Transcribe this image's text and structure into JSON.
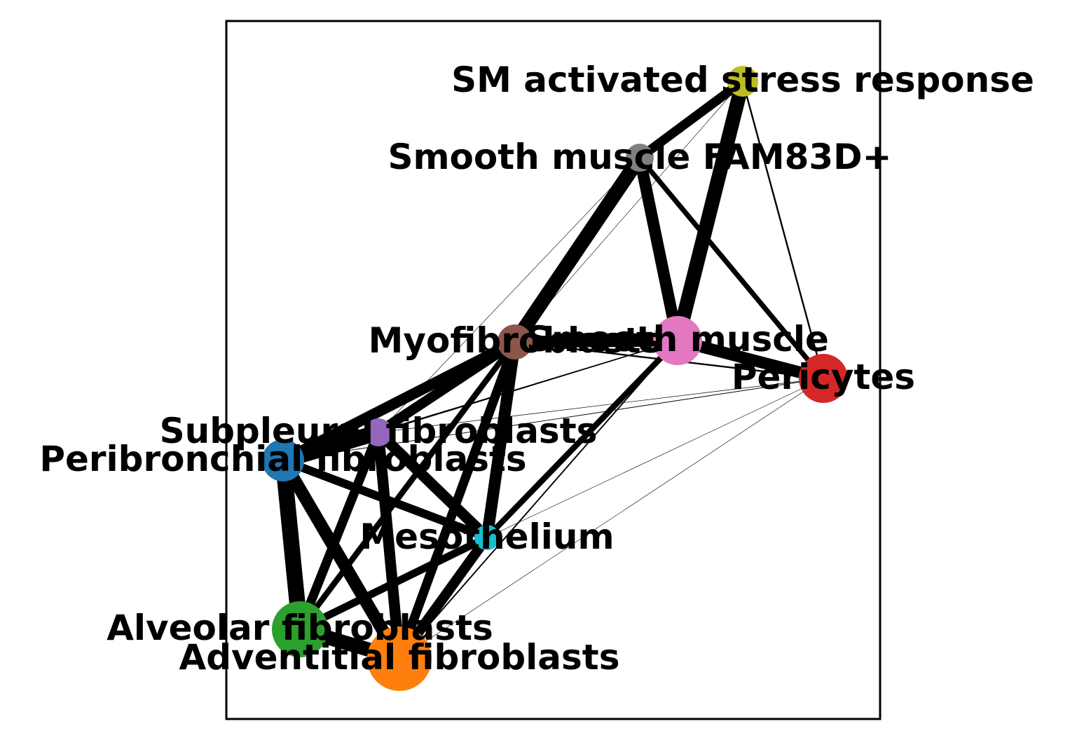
{
  "nodes": [
    {
      "id": "sm_stress",
      "label": "SM activated stress response",
      "color": "#bcbd22"
    },
    {
      "id": "sm_fam83d",
      "label": "Smooth muscle FAM83D+",
      "color": "#7f7f7f"
    },
    {
      "id": "myofib",
      "label": "Myofibroblasts",
      "color": "#8c564b"
    },
    {
      "id": "smooth",
      "label": "Smooth muscle",
      "color": "#e377c2"
    },
    {
      "id": "pericytes",
      "label": "Pericytes",
      "color": "#d62728"
    },
    {
      "id": "subpleural",
      "label": "Subpleural fibroblasts",
      "color": "#9467bd"
    },
    {
      "id": "peribronchial",
      "label": "Peribronchial fibroblasts",
      "color": "#1f77b4"
    },
    {
      "id": "mesothelium",
      "label": "Mesothelium",
      "color": "#17becf"
    },
    {
      "id": "alveolar",
      "label": "Alveolar fibroblasts",
      "color": "#2ca02c"
    },
    {
      "id": "adventitial",
      "label": "Adventitial fibroblasts",
      "color": "#ff7f0e"
    }
  ],
  "edges": [
    {
      "source": "sm_stress",
      "target": "sm_fam83d",
      "weight": 0.55
    },
    {
      "source": "sm_stress",
      "target": "smooth",
      "weight": 0.85
    },
    {
      "source": "sm_stress",
      "target": "pericytes",
      "weight": 0.1
    },
    {
      "source": "sm_stress",
      "target": "myofib",
      "weight": 0.02
    },
    {
      "source": "sm_fam83d",
      "target": "myofib",
      "weight": 0.85
    },
    {
      "source": "sm_fam83d",
      "target": "smooth",
      "weight": 0.7
    },
    {
      "source": "sm_fam83d",
      "target": "pericytes",
      "weight": 0.3
    },
    {
      "source": "sm_fam83d",
      "target": "subpleural",
      "weight": 0.02
    },
    {
      "source": "myofib",
      "target": "smooth",
      "weight": 0.7
    },
    {
      "source": "myofib",
      "target": "pericytes",
      "weight": 0.1
    },
    {
      "source": "myofib",
      "target": "subpleural",
      "weight": 0.6
    },
    {
      "source": "myofib",
      "target": "peribronchial",
      "weight": 0.65
    },
    {
      "source": "myofib",
      "target": "mesothelium",
      "weight": 0.7
    },
    {
      "source": "myofib",
      "target": "alveolar",
      "weight": 0.35
    },
    {
      "source": "myofib",
      "target": "adventitial",
      "weight": 0.55
    },
    {
      "source": "smooth",
      "target": "pericytes",
      "weight": 0.7
    },
    {
      "source": "smooth",
      "target": "mesothelium",
      "weight": 0.35
    },
    {
      "source": "smooth",
      "target": "subpleural",
      "weight": 0.06
    },
    {
      "source": "smooth",
      "target": "peribronchial",
      "weight": 0.06
    },
    {
      "source": "smooth",
      "target": "adventitial",
      "weight": 0.08
    },
    {
      "source": "pericytes",
      "target": "peribronchial",
      "weight": 0.04
    },
    {
      "source": "pericytes",
      "target": "subpleural",
      "weight": 0.03
    },
    {
      "source": "pericytes",
      "target": "adventitial",
      "weight": 0.02
    },
    {
      "source": "pericytes",
      "target": "mesothelium",
      "weight": 0.02
    },
    {
      "source": "subpleural",
      "target": "peribronchial",
      "weight": 0.95
    },
    {
      "source": "subpleural",
      "target": "mesothelium",
      "weight": 0.65
    },
    {
      "source": "subpleural",
      "target": "alveolar",
      "weight": 0.55
    },
    {
      "source": "subpleural",
      "target": "adventitial",
      "weight": 0.65
    },
    {
      "source": "peribronchial",
      "target": "mesothelium",
      "weight": 0.5
    },
    {
      "source": "peribronchial",
      "target": "alveolar",
      "weight": 0.95
    },
    {
      "source": "peribronchial",
      "target": "adventitial",
      "weight": 0.75
    },
    {
      "source": "mesothelium",
      "target": "alveolar",
      "weight": 0.45
    },
    {
      "source": "mesothelium",
      "target": "adventitial",
      "weight": 0.6
    },
    {
      "source": "alveolar",
      "target": "adventitial",
      "weight": 0.85
    }
  ]
}
